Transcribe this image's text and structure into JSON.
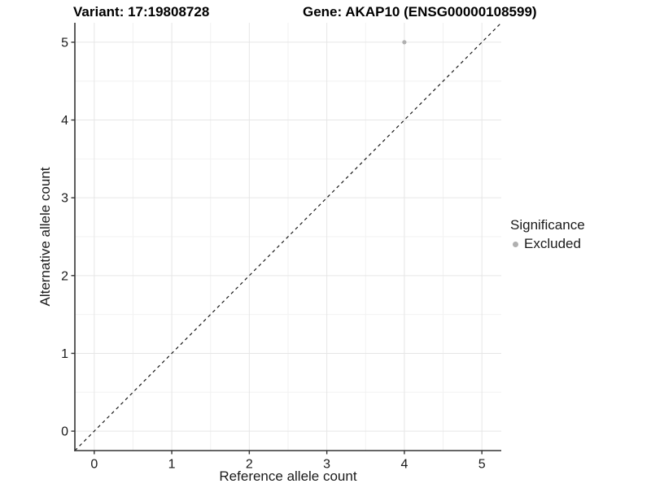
{
  "chart_data": {
    "type": "scatter",
    "title_left": "Variant: 17:19808728",
    "title_right": "Gene: AKAP10 (ENSG00000108599)",
    "xlabel": "Reference allele count",
    "ylabel": "Alternative allele count",
    "xlim": [
      -0.25,
      5.25
    ],
    "ylim": [
      -0.25,
      5.25
    ],
    "x_ticks": [
      0,
      1,
      2,
      3,
      4,
      5
    ],
    "y_ticks": [
      0,
      1,
      2,
      3,
      4,
      5
    ],
    "x_minor_ticks": [
      0.5,
      1.5,
      2.5,
      3.5,
      4.5
    ],
    "y_minor_ticks": [
      0.5,
      1.5,
      2.5,
      3.5,
      4.5
    ],
    "grid": true,
    "identity_line": {
      "slope": 1,
      "intercept": 0,
      "style": "dashed",
      "color": "#1a1a1a"
    },
    "series": [
      {
        "name": "Excluded",
        "color": "#b0b0b0",
        "points": [
          [
            4,
            5
          ]
        ]
      }
    ],
    "legend": {
      "position": "right",
      "title": "Significance",
      "items": [
        {
          "label": "Excluded",
          "color": "#b0b0b0"
        }
      ]
    },
    "colors": {
      "grid_major": "#e6e6e6",
      "grid_minor": "#f2f2f2",
      "axis_line": "#333333",
      "text": "#1a1a1a",
      "background": "#ffffff"
    }
  }
}
